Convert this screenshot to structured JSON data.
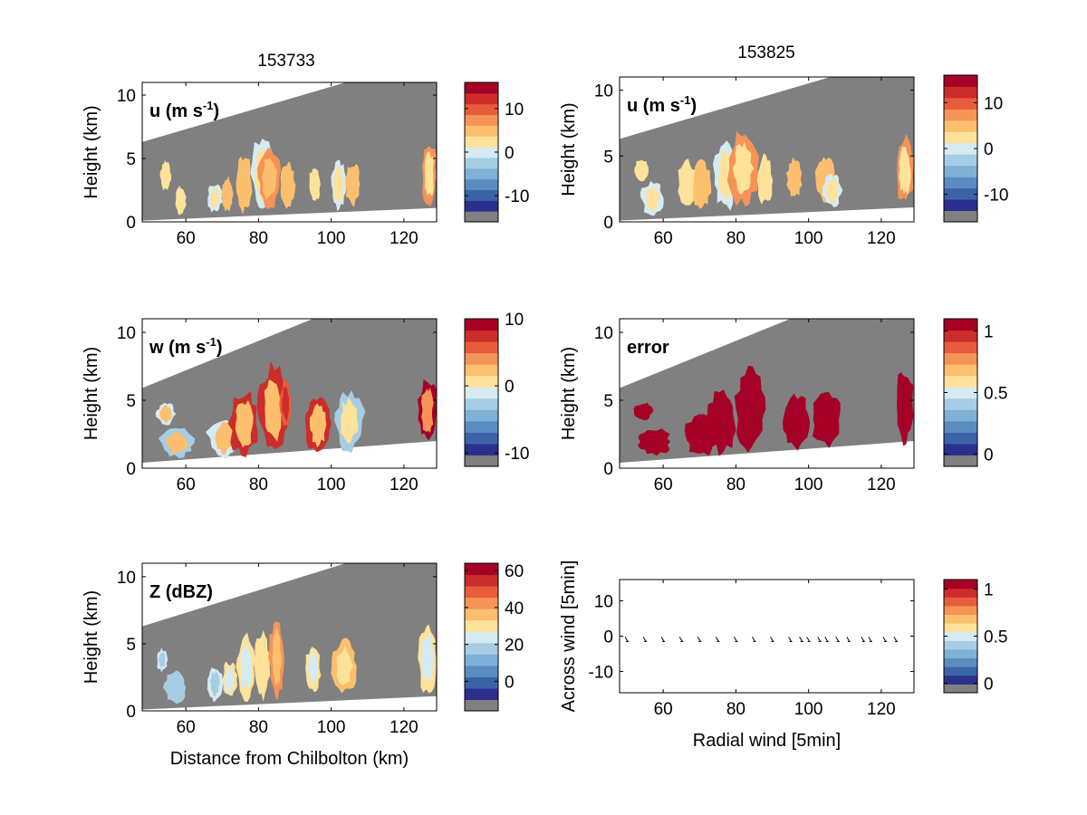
{
  "figure": {
    "column_titles": [
      "153733",
      "153825"
    ]
  },
  "colors": {
    "missing": "#808080",
    "background": "#ffffff",
    "palette": [
      "#2c2f8e",
      "#3a64a7",
      "#5a8cc2",
      "#7fb0d5",
      "#a6cde3",
      "#d5ebf1",
      "#fee29a",
      "#fbbf6d",
      "#f69357",
      "#e75d3c",
      "#cc2c2b",
      "#a50026"
    ]
  },
  "chart_data": [
    {
      "id": "u-left",
      "type": "heatmap",
      "label": "u (m s",
      "label_sup": "-1",
      "label_suffix": ")",
      "xlabel": "",
      "ylabel": "Height (km)",
      "xlim": [
        48,
        129
      ],
      "ylim": [
        0,
        11
      ],
      "xticks": [
        "60",
        "80",
        "100",
        "120"
      ],
      "yticks": [
        "0",
        "5",
        "10"
      ],
      "colorbar": {
        "ticks": [
          "10",
          "0",
          "-10"
        ],
        "tick_values": [
          10,
          0,
          -10
        ],
        "range": [
          -16,
          16
        ]
      },
      "scan_lower": [
        0.1,
        1.1
      ],
      "scan_upper": [
        6.3,
        11.0
      ],
      "upper_reaches_top_at_x": 104,
      "cells": [
        {
          "x": [
            53,
            56
          ],
          "y": [
            2.5,
            4.8
          ],
          "value": 1,
          "edge": -1
        },
        {
          "x": [
            57,
            60
          ],
          "y": [
            0.6,
            2.7
          ],
          "value": 1,
          "edge": -1
        },
        {
          "x": [
            66,
            70
          ],
          "y": [
            0.8,
            3.0
          ],
          "value": 1,
          "edge": -2
        },
        {
          "x": [
            70,
            73
          ],
          "y": [
            0.8,
            3.5
          ],
          "value": 4,
          "edge": -1
        },
        {
          "x": [
            74,
            78
          ],
          "y": [
            0.9,
            5.2
          ],
          "value": 4,
          "edge": -1
        },
        {
          "x": [
            78,
            85
          ],
          "y": [
            0.9,
            6.7
          ],
          "value": 1,
          "edge": -2
        },
        {
          "x": [
            80,
            86
          ],
          "y": [
            1.2,
            5.8
          ],
          "value": 5,
          "edge": 1
        },
        {
          "x": [
            86,
            90
          ],
          "y": [
            1.0,
            4.8
          ],
          "value": 5,
          "edge": -1
        },
        {
          "x": [
            94,
            97
          ],
          "y": [
            1.5,
            4.4
          ],
          "value": 1,
          "edge": -1
        },
        {
          "x": [
            100,
            104
          ],
          "y": [
            1.0,
            4.9
          ],
          "value": 1,
          "edge": -2
        },
        {
          "x": [
            104,
            108
          ],
          "y": [
            1.4,
            4.6
          ],
          "value": 4,
          "edge": -1
        },
        {
          "x": [
            125,
            129
          ],
          "y": [
            1.4,
            6.1
          ],
          "value": 2,
          "edge": 5
        }
      ]
    },
    {
      "id": "u-right",
      "type": "heatmap",
      "label": "u (m s",
      "label_sup": "-1",
      "label_suffix": ")",
      "xlabel": "",
      "ylabel": "Height (km)",
      "xlim": [
        48,
        129
      ],
      "ylim": [
        0,
        11
      ],
      "xticks": [
        "60",
        "80",
        "100",
        "120"
      ],
      "yticks": [
        "0",
        "5",
        "10"
      ],
      "colorbar": {
        "ticks": [
          "10",
          "0",
          "-10"
        ],
        "tick_values": [
          10,
          0,
          -10
        ],
        "range": [
          -16,
          16
        ]
      },
      "scan_lower": [
        0.1,
        1.1
      ],
      "scan_upper": [
        6.3,
        11.0
      ],
      "upper_reaches_top_at_x": 106,
      "cells": [
        {
          "x": [
            52,
            56
          ],
          "y": [
            3.0,
            4.8
          ],
          "value": 1,
          "edge": -1
        },
        {
          "x": [
            54,
            60
          ],
          "y": [
            0.6,
            3.0
          ],
          "value": 1,
          "edge": -2
        },
        {
          "x": [
            64,
            69
          ],
          "y": [
            1.0,
            4.6
          ],
          "value": 1,
          "edge": -1
        },
        {
          "x": [
            68,
            73
          ],
          "y": [
            1.0,
            4.6
          ],
          "value": 4,
          "edge": -1
        },
        {
          "x": [
            74,
            80
          ],
          "y": [
            1.0,
            6.1
          ],
          "value": 1,
          "edge": -2
        },
        {
          "x": [
            78,
            86
          ],
          "y": [
            1.3,
            6.8
          ],
          "value": 2,
          "edge": 5
        },
        {
          "x": [
            86,
            90
          ],
          "y": [
            1.4,
            5.0
          ],
          "value": 1,
          "edge": -1
        },
        {
          "x": [
            94,
            98
          ],
          "y": [
            1.8,
            4.7
          ],
          "value": 4,
          "edge": -1
        },
        {
          "x": [
            102,
            107
          ],
          "y": [
            1.6,
            5.0
          ],
          "value": 4,
          "edge": -1
        },
        {
          "x": [
            104,
            109
          ],
          "y": [
            1.2,
            3.6
          ],
          "value": 1,
          "edge": -2
        },
        {
          "x": [
            124,
            129
          ],
          "y": [
            1.5,
            6.4
          ],
          "value": 1,
          "edge": 5
        }
      ]
    },
    {
      "id": "w-left",
      "type": "heatmap",
      "label": "w (m s",
      "label_sup": "-1",
      "label_suffix": ")",
      "xlabel": "",
      "ylabel": "Height (km)",
      "xlim": [
        48,
        129
      ],
      "ylim": [
        0,
        11
      ],
      "xticks": [
        "60",
        "80",
        "100",
        "120"
      ],
      "yticks": [
        "0",
        "5",
        "10"
      ],
      "colorbar": {
        "ticks": [
          "10",
          "0",
          "-10"
        ],
        "tick_values": [
          10,
          0,
          -10
        ],
        "range": [
          -12,
          10
        ]
      },
      "scan_lower": [
        0.4,
        2.0
      ],
      "scan_upper": [
        5.9,
        11.0
      ],
      "upper_reaches_top_at_x": 95,
      "cells": [
        {
          "x": [
            52,
            57
          ],
          "y": [
            3.2,
            4.8
          ],
          "value": 1,
          "edge": -3
        },
        {
          "x": [
            53,
            62
          ],
          "y": [
            0.8,
            2.9
          ],
          "value": 1,
          "edge": -4
        },
        {
          "x": [
            66,
            75
          ],
          "y": [
            0.8,
            3.6
          ],
          "value": 1,
          "edge": -3
        },
        {
          "x": [
            72,
            80
          ],
          "y": [
            1.0,
            5.6
          ],
          "value": 2,
          "edge": 5
        },
        {
          "x": [
            80,
            88
          ],
          "y": [
            1.2,
            7.4
          ],
          "value": 1,
          "edge": 7
        },
        {
          "x": [
            86,
            89
          ],
          "y": [
            3.0,
            6.5
          ],
          "value": 8,
          "edge": -3
        },
        {
          "x": [
            93,
            100
          ],
          "y": [
            1.2,
            5.3
          ],
          "value": 1,
          "edge": 6
        },
        {
          "x": [
            101,
            109
          ],
          "y": [
            1.4,
            5.6
          ],
          "value": 0,
          "edge": -3
        },
        {
          "x": [
            124,
            129
          ],
          "y": [
            2.0,
            6.6
          ],
          "value": 4,
          "edge": 6
        }
      ]
    },
    {
      "id": "error-right",
      "type": "heatmap",
      "label": "error",
      "label_sup": "",
      "label_suffix": "",
      "xlabel": "",
      "ylabel": "Height (km)",
      "xlim": [
        48,
        129
      ],
      "ylim": [
        0,
        11
      ],
      "xticks": [
        "60",
        "80",
        "100",
        "120"
      ],
      "yticks": [
        "0",
        "5",
        "10"
      ],
      "colorbar": {
        "ticks": [
          "1",
          "0.5",
          "0"
        ],
        "tick_values": [
          1,
          0.5,
          0
        ],
        "range": [
          -0.1,
          1.1
        ]
      },
      "scan_lower": [
        0.4,
        2.0
      ],
      "scan_upper": [
        5.9,
        11.0
      ],
      "upper_reaches_top_at_x": 95,
      "cells": [
        {
          "x": [
            52,
            57
          ],
          "y": [
            3.6,
            4.8
          ],
          "value": 1.05,
          "edge": 0.1
        },
        {
          "x": [
            53,
            62
          ],
          "y": [
            1.0,
            2.9
          ],
          "value": 1.05,
          "edge": 0.1
        },
        {
          "x": [
            66,
            75
          ],
          "y": [
            1.0,
            3.8
          ],
          "value": 1.05,
          "edge": 0.1
        },
        {
          "x": [
            72,
            80
          ],
          "y": [
            1.2,
            5.6
          ],
          "value": 1.05,
          "edge": 0.3
        },
        {
          "x": [
            80,
            88
          ],
          "y": [
            1.4,
            7.3
          ],
          "value": 1.05,
          "edge": 0.1
        },
        {
          "x": [
            93,
            100
          ],
          "y": [
            1.4,
            5.4
          ],
          "value": 1.05,
          "edge": 0.3
        },
        {
          "x": [
            101,
            109
          ],
          "y": [
            1.6,
            5.6
          ],
          "value": 1.05,
          "edge": 0.2
        },
        {
          "x": [
            124,
            129
          ],
          "y": [
            2.0,
            7.2
          ],
          "value": 1.05,
          "edge": 0.3
        }
      ]
    },
    {
      "id": "z-left",
      "type": "heatmap",
      "label": "Z (dBZ)",
      "label_sup": "",
      "label_suffix": "",
      "xlabel": "Distance from Chilbolton (km)",
      "ylabel": "Height (km)",
      "xlim": [
        48,
        129
      ],
      "ylim": [
        0,
        11
      ],
      "xticks": [
        "60",
        "80",
        "100",
        "120"
      ],
      "yticks": [
        "0",
        "5",
        "10"
      ],
      "colorbar": {
        "ticks": [
          "60",
          "40",
          "20",
          "0"
        ],
        "tick_values": [
          60,
          40,
          20,
          0
        ],
        "range": [
          -16,
          64
        ]
      },
      "scan_lower": [
        0.1,
        1.1
      ],
      "scan_upper": [
        6.3,
        11.0
      ],
      "upper_reaches_top_at_x": 104,
      "cells": [
        {
          "x": [
            52,
            55
          ],
          "y": [
            3.0,
            4.6
          ],
          "value": 16,
          "edge": 2
        },
        {
          "x": [
            54,
            60
          ],
          "y": [
            0.6,
            2.9
          ],
          "value": 16,
          "edge": -2
        },
        {
          "x": [
            66,
            70
          ],
          "y": [
            0.8,
            3.2
          ],
          "value": 16,
          "edge": 4
        },
        {
          "x": [
            70,
            74
          ],
          "y": [
            1.0,
            3.6
          ],
          "value": 20,
          "edge": 4
        },
        {
          "x": [
            74,
            79
          ],
          "y": [
            1.0,
            5.5
          ],
          "value": 20,
          "edge": 4
        },
        {
          "x": [
            79,
            83
          ],
          "y": [
            1.0,
            5.8
          ],
          "value": 24,
          "edge": 4
        },
        {
          "x": [
            83,
            87
          ],
          "y": [
            1.2,
            6.7
          ],
          "value": 34,
          "edge": 6
        },
        {
          "x": [
            93,
            97
          ],
          "y": [
            1.5,
            4.8
          ],
          "value": 20,
          "edge": 6
        },
        {
          "x": [
            100,
            107
          ],
          "y": [
            1.5,
            5.2
          ],
          "value": 26,
          "edge": 10
        },
        {
          "x": [
            124,
            129
          ],
          "y": [
            1.5,
            6.4
          ],
          "value": 20,
          "edge": 8
        }
      ]
    },
    {
      "id": "quiver",
      "type": "scatter",
      "label": "",
      "label_sup": "",
      "label_suffix": "",
      "xlabel": "Radial wind [5min]",
      "ylabel": "Across wind [5min]",
      "xlim": [
        48,
        129
      ],
      "ylim": [
        -16,
        16
      ],
      "xticks": [
        "60",
        "80",
        "100",
        "120"
      ],
      "yticks": [
        "10",
        "0",
        "-10"
      ],
      "colorbar": {
        "ticks": [
          "1",
          "0.5",
          "0"
        ],
        "tick_values": [
          1,
          0.5,
          0
        ],
        "range": [
          -0.1,
          1.1
        ]
      },
      "arrows_x": [
        50,
        55,
        60,
        65,
        70,
        75,
        80,
        85,
        90,
        95,
        98,
        100,
        103,
        105,
        108,
        111,
        115,
        117,
        121,
        124
      ],
      "arrows_y": -1,
      "cells": []
    }
  ]
}
